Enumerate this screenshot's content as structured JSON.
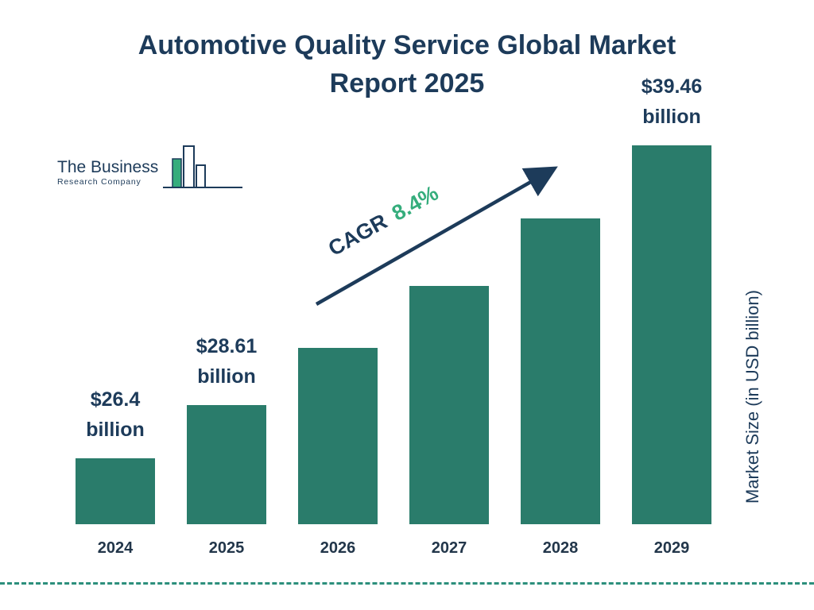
{
  "title": {
    "line1": "Automotive Quality Service Global Market",
    "line2": "Report 2025"
  },
  "logo": {
    "name_line1": "The Business",
    "name_line2": "Research Company"
  },
  "cagr": {
    "label": "CAGR",
    "value": "8.4%"
  },
  "y_axis_label": "Market Size (in USD billion)",
  "chart_data": {
    "type": "bar",
    "title": "Automotive Quality Service Global Market Report 2025",
    "categories": [
      "2024",
      "2025",
      "2026",
      "2027",
      "2028",
      "2029"
    ],
    "values": [
      26.4,
      28.61,
      31.0,
      33.6,
      36.4,
      39.46
    ],
    "labeled_values": [
      {
        "year": "2024",
        "value_text": "$26.4",
        "unit_text": "billion"
      },
      {
        "year": "2025",
        "value_text": "$28.61",
        "unit_text": "billion"
      },
      {
        "year": "2029",
        "value_text": "$39.46",
        "unit_text": "billion"
      }
    ],
    "cagr": "8.4%",
    "ylabel": "Market Size (in USD billion)",
    "xlabel": "",
    "ylim": [
      23.65,
      39.46
    ],
    "grid": false,
    "legend": false
  },
  "colors": {
    "bar": "#2a7c6b",
    "title": "#1d3b5a",
    "cagr_green": "#35ad7c",
    "arrow": "#1d3b5a",
    "dashed_line": "#2c8f7c"
  }
}
